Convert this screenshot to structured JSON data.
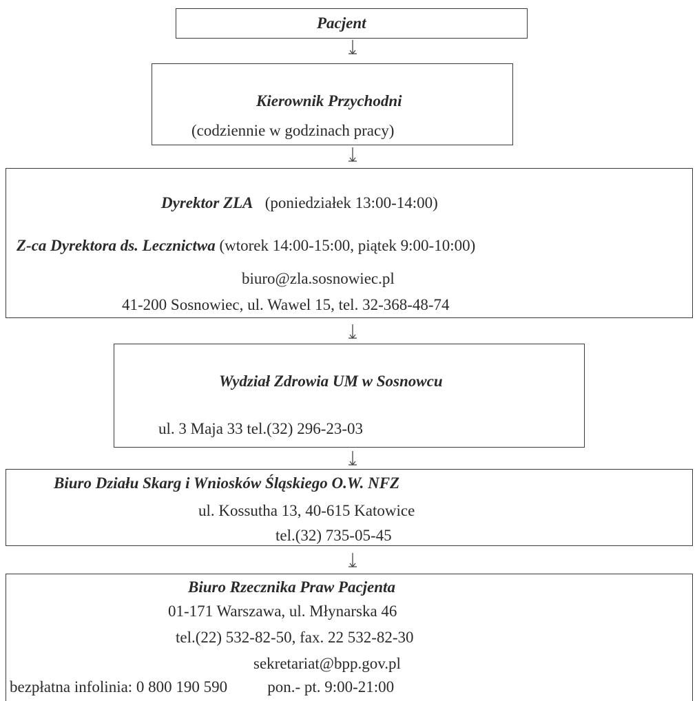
{
  "flow": {
    "patient": {
      "title": "Pacjent"
    },
    "manager": {
      "title": "Kierownik Przychodni",
      "hours": "(codziennie w godzinach pracy)"
    },
    "director": {
      "director_title": "Dyrektor ZLA",
      "director_hours": "(poniedziałek 13:00-14:00)",
      "deputy_title": "Z-ca Dyrektora ds. Lecznictwa",
      "deputy_hours": "(wtorek 14:00-15:00, piątek 9:00-10:00)",
      "email": "biuro@zla.sosnowiec.pl",
      "address": "41-200 Sosnowiec, ul. Wawel 15,  tel. 32-368-48-74"
    },
    "health_dept": {
      "title": "Wydział Zdrowia UM w Sosnowcu",
      "address": "ul. 3 Maja 33   tel.(32)  296-23-03"
    },
    "nfz": {
      "title": "Biuro Działu Skarg i Wniosków Śląskiego O.W. NFZ",
      "address": "ul. Kossutha 13, 40-615 Katowice",
      "phone": "tel.(32) 735-05-45"
    },
    "ombudsman": {
      "title": "Biuro Rzecznika Praw Pacjenta",
      "address": "01-171 Warszawa, ul. Młynarska 46",
      "phone": "tel.(22) 532-82-50,  fax. 22 532-82-30",
      "email": "sekretariat@bpp.gov.pl",
      "infoline": "bezpłatna infolinia: 0 800 190 590",
      "infoline_hours": "pon.- pt. 9:00-21:00"
    }
  }
}
